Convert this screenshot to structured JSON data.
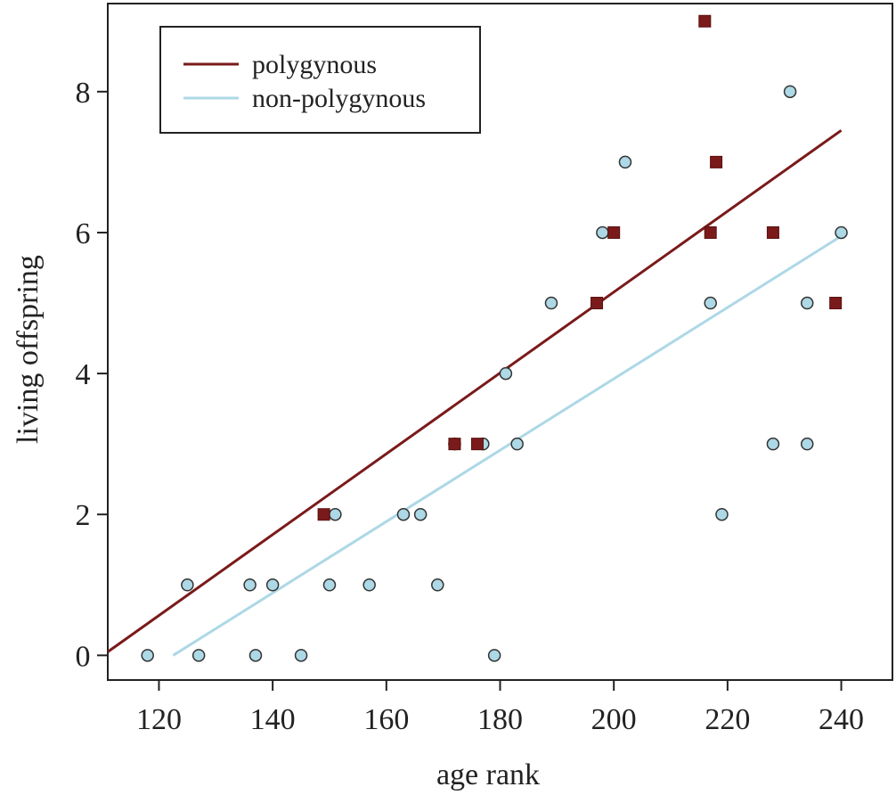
{
  "chart_data": {
    "type": "scatter",
    "title": "",
    "xlabel": "age rank",
    "ylabel": "living offspring",
    "xlim": [
      111,
      249
    ],
    "ylim": [
      -0.35,
      9.25
    ],
    "xticks": [
      120,
      140,
      160,
      180,
      200,
      220,
      240
    ],
    "yticks": [
      0,
      2,
      4,
      6,
      8
    ],
    "grid": false,
    "legend_position": "top-left",
    "series": [
      {
        "name": "polygynous",
        "color": "#7a1a1a",
        "marker": "square",
        "points": [
          {
            "x": 149,
            "y": 2
          },
          {
            "x": 172,
            "y": 3
          },
          {
            "x": 176,
            "y": 3
          },
          {
            "x": 197,
            "y": 5
          },
          {
            "x": 200,
            "y": 6
          },
          {
            "x": 216,
            "y": 9
          },
          {
            "x": 217,
            "y": 6
          },
          {
            "x": 218,
            "y": 7
          },
          {
            "x": 228,
            "y": 6
          },
          {
            "x": 239,
            "y": 5
          }
        ],
        "fit_line": {
          "x_start": 111,
          "y_start": 0.05,
          "x_end": 240,
          "y_end": 7.45
        }
      },
      {
        "name": "non-polygynous",
        "color": "#add8e6",
        "marker": "circle",
        "points": [
          {
            "x": 118,
            "y": 0
          },
          {
            "x": 125,
            "y": 1
          },
          {
            "x": 127,
            "y": 0
          },
          {
            "x": 136,
            "y": 1
          },
          {
            "x": 137,
            "y": 0
          },
          {
            "x": 140,
            "y": 1
          },
          {
            "x": 145,
            "y": 0
          },
          {
            "x": 150,
            "y": 1
          },
          {
            "x": 151,
            "y": 2
          },
          {
            "x": 157,
            "y": 1
          },
          {
            "x": 163,
            "y": 2
          },
          {
            "x": 166,
            "y": 2
          },
          {
            "x": 169,
            "y": 1
          },
          {
            "x": 172,
            "y": 3
          },
          {
            "x": 177,
            "y": 3
          },
          {
            "x": 179,
            "y": 0
          },
          {
            "x": 181,
            "y": 4
          },
          {
            "x": 183,
            "y": 3
          },
          {
            "x": 189,
            "y": 5
          },
          {
            "x": 198,
            "y": 6
          },
          {
            "x": 202,
            "y": 7
          },
          {
            "x": 217,
            "y": 5
          },
          {
            "x": 219,
            "y": 2
          },
          {
            "x": 228,
            "y": 3
          },
          {
            "x": 231,
            "y": 8
          },
          {
            "x": 234,
            "y": 5
          },
          {
            "x": 234,
            "y": 3
          },
          {
            "x": 240,
            "y": 6
          }
        ],
        "fit_line": {
          "x_start": 122.5,
          "y_start": 0,
          "x_end": 240,
          "y_end": 5.95
        }
      }
    ]
  }
}
